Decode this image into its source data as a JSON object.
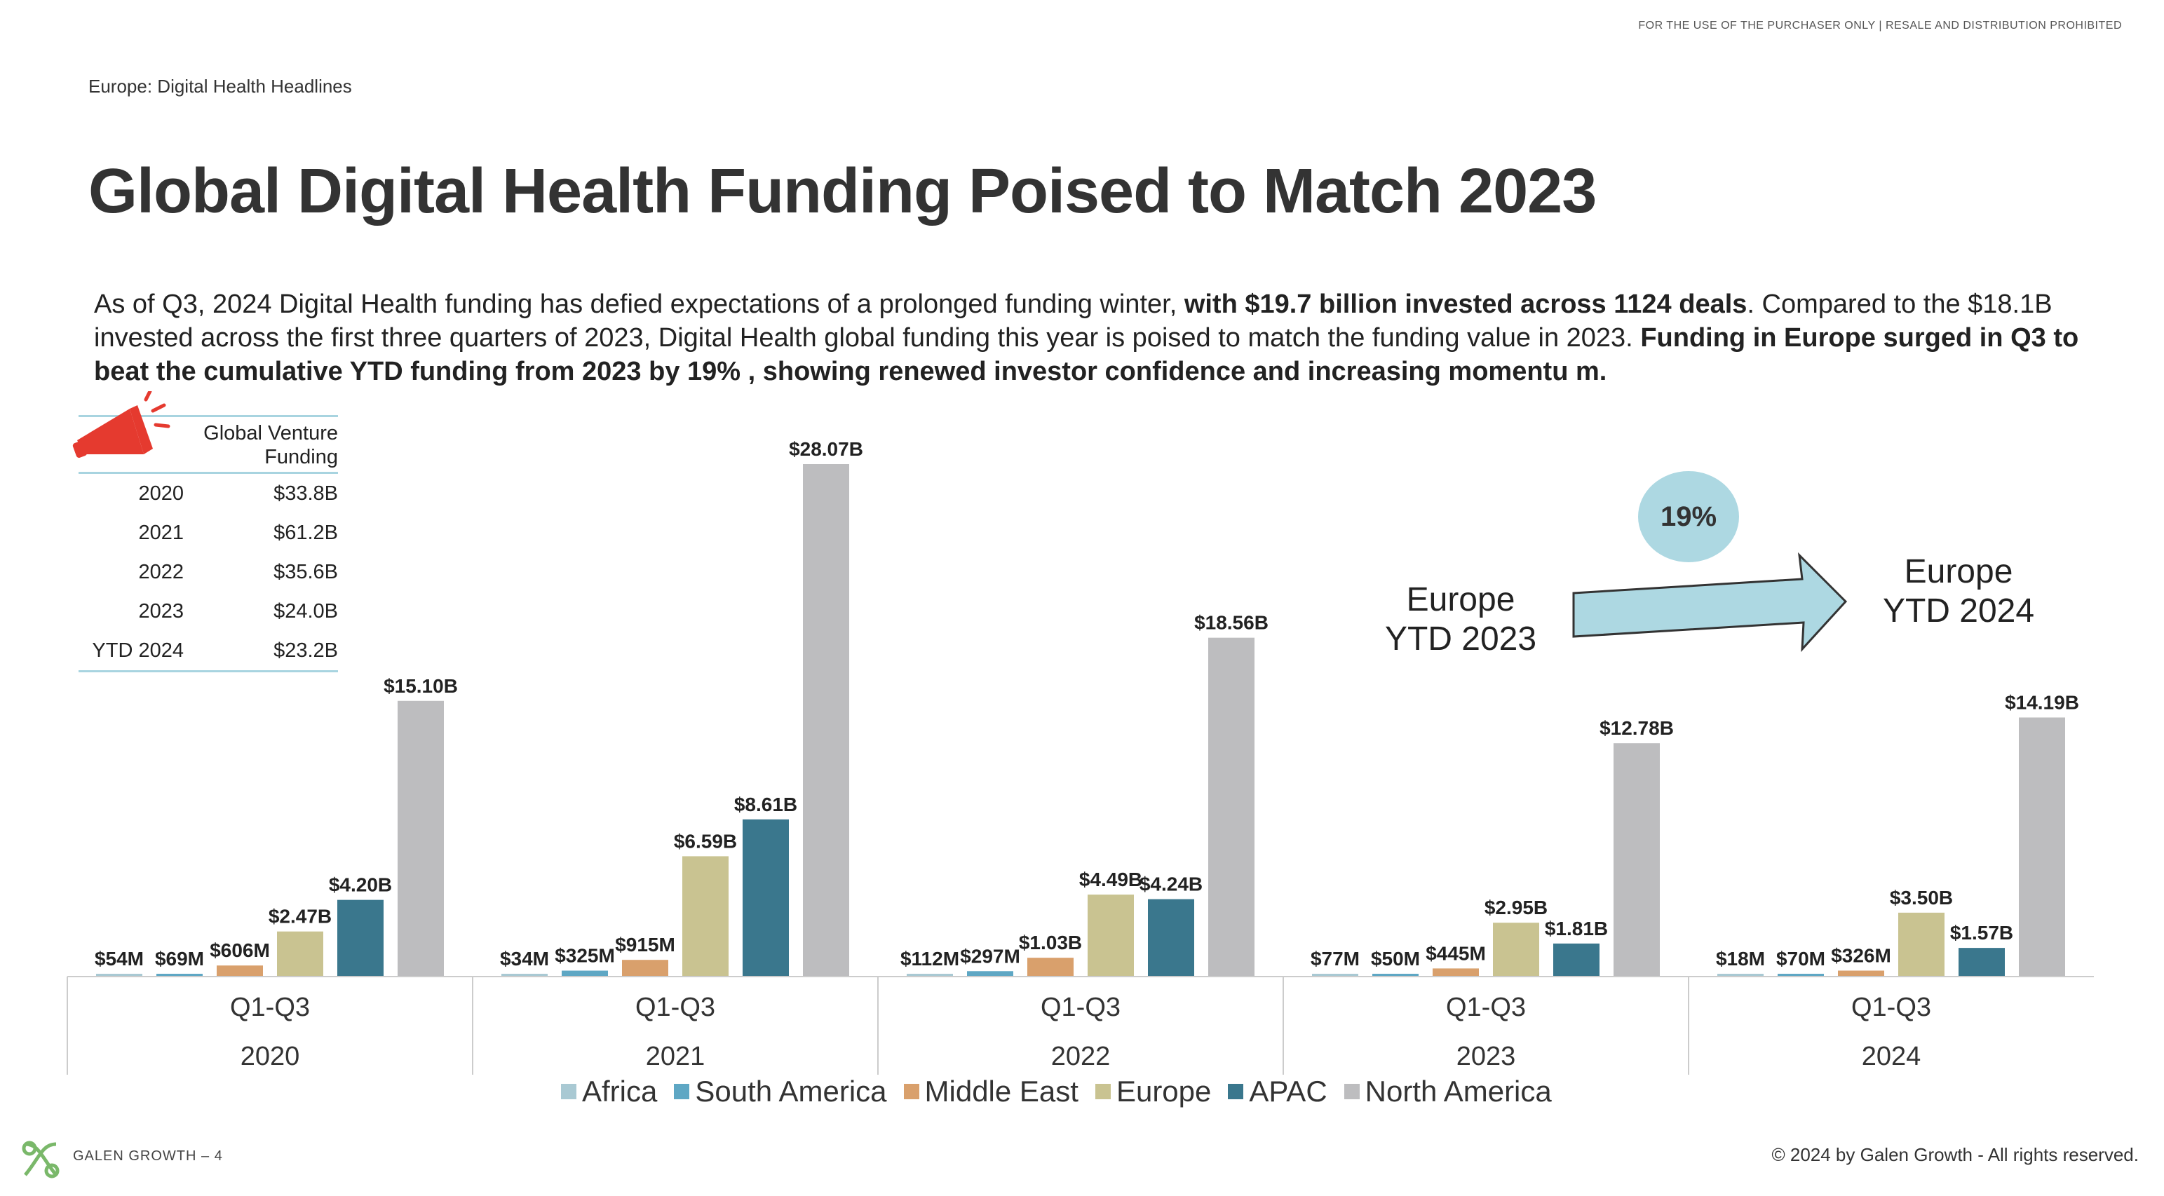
{
  "header": {
    "disclaimer": "FOR THE USE OF THE PURCHASER ONLY | RESALE AND DISTRIBUTION PROHIBITED",
    "section": "Europe: Digital Health Headlines",
    "title": "Global Digital Health Funding Poised to Match 2023"
  },
  "intro": {
    "p1": "As of Q3, 2024 Digital Health funding has defied expectations of a prolonged funding winter, ",
    "b1": "with $19.7 billion invested across 1124 deals",
    "p2": ". Compared to the $18.1B invested across the first three quarters of 2023, Digital Health global funding this year is poised to match the funding value in 2023. ",
    "b2": "Funding in Europe surged in Q3 to beat the cumulative YTD funding from 2023 by 19% , showing renewed investor confidence and increasing momentu m."
  },
  "funding_table": {
    "header": "Global Venture Funding",
    "rows": [
      {
        "year": "2020",
        "value": "$33.8B"
      },
      {
        "year": "2021",
        "value": "$61.2B"
      },
      {
        "year": "2022",
        "value": "$35.6B"
      },
      {
        "year": "2023",
        "value": "$24.0B"
      },
      {
        "year": "YTD 2024",
        "value": "$23.2B"
      }
    ]
  },
  "callout": {
    "percent": "19%",
    "from_label_1": "Europe",
    "from_label_2": "YTD 2023",
    "to_label_1": "Europe",
    "to_label_2": "YTD 2024"
  },
  "chart_data": {
    "type": "bar",
    "categories": [
      "2020",
      "2021",
      "2022",
      "2023",
      "2024"
    ],
    "category_sublabel": "Q1-Q3",
    "ylim": [
      0,
      28.07
    ],
    "grid": false,
    "legend_position": "bottom",
    "series": [
      {
        "name": "Africa",
        "color": "#a9c9d3",
        "values": [
          0.054,
          0.034,
          0.112,
          0.077,
          0.018
        ],
        "labels": [
          "$54M",
          "$34M",
          "$112M",
          "$77M",
          "$18M"
        ]
      },
      {
        "name": "South America",
        "color": "#5ea7c4",
        "values": [
          0.069,
          0.325,
          0.297,
          0.05,
          0.07
        ],
        "labels": [
          "$69M",
          "$325M",
          "$297M",
          "$50M",
          "$70M"
        ]
      },
      {
        "name": "Middle East",
        "color": "#d9a06c",
        "values": [
          0.606,
          0.915,
          1.03,
          0.445,
          0.326
        ],
        "labels": [
          "$606M",
          "$915M",
          "$1.03B",
          "$445M",
          "$326M"
        ]
      },
      {
        "name": "Europe",
        "color": "#c9c391",
        "values": [
          2.47,
          6.59,
          4.49,
          2.95,
          3.5
        ],
        "labels": [
          "$2.47B",
          "$6.59B",
          "$4.49B",
          "$2.95B",
          "$3.50B"
        ]
      },
      {
        "name": "APAC",
        "color": "#3a778d",
        "values": [
          4.2,
          8.61,
          4.24,
          1.81,
          1.57
        ],
        "labels": [
          "$4.20B",
          "$8.61B",
          "$4.24B",
          "$1.81B",
          "$1.57B"
        ]
      },
      {
        "name": "North America",
        "color": "#bdbdbf",
        "values": [
          15.1,
          28.07,
          18.56,
          12.78,
          14.19
        ],
        "labels": [
          "$15.10B",
          "$28.07B",
          "$18.56B",
          "$12.78B",
          "$14.19B"
        ]
      }
    ]
  },
  "footer": {
    "brand": "GALEN GROWTH – 4",
    "copyright": "© 2024 by Galen Growth  - All rights reserved."
  },
  "colors": {
    "megaphone": "#e53a2f",
    "bubble": "#add8e2",
    "arrow_fill": "#add8e2",
    "table_rule": "#a8d4e0"
  }
}
